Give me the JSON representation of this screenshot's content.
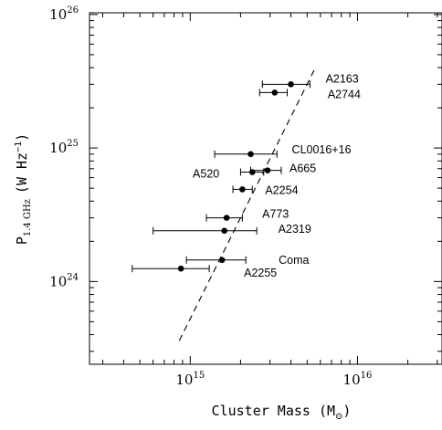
{
  "chart_data": {
    "type": "scatter",
    "xlabel": "Cluster Mass (M",
    "xlabel_sub": "⊙",
    "xlabel_close": ")",
    "ylabel_main": "P",
    "ylabel_sub": "1.4 GHz",
    "ylabel_units": "(W Hz",
    "ylabel_units_sup": "−1",
    "ylabel_close": ")",
    "x_scale": "log",
    "y_scale": "log",
    "xlim": [
      250000000000000.0,
      3.2e+16
    ],
    "ylim": [
      2.4e+23,
      1.03e+26
    ],
    "x_ticks": [
      {
        "base": "10",
        "exp": "15",
        "value": 1000000000000000.0
      },
      {
        "base": "10",
        "exp": "16",
        "value": 1e+16
      }
    ],
    "y_ticks": [
      {
        "base": "10",
        "exp": "24",
        "value": 1e+24
      },
      {
        "base": "10",
        "exp": "25",
        "value": 1e+25
      },
      {
        "base": "10",
        "exp": "26",
        "value": 1e+26
      }
    ],
    "points": [
      {
        "label": "A2163",
        "mass": 4000000000000000.0,
        "mass_lo": 2700000000000000.0,
        "mass_hi": 5200000000000000.0,
        "power": 3e+25,
        "label_pos": "right"
      },
      {
        "label": "A2744",
        "mass": 3200000000000000.0,
        "mass_lo": 2600000000000000.0,
        "mass_hi": 3800000000000000.0,
        "power": 2.6e+25,
        "label_pos": "right-below"
      },
      {
        "label": "CL0016+16",
        "mass": 2300000000000000.0,
        "mass_lo": 1400000000000000.0,
        "mass_hi": 3300000000000000.0,
        "power": 9e+24,
        "label_pos": "right"
      },
      {
        "label": "A665",
        "mass": 2900000000000000.0,
        "mass_lo": 2300000000000000.0,
        "mass_hi": 3500000000000000.0,
        "power": 6.8e+24,
        "label_pos": "right"
      },
      {
        "label": "A520",
        "mass": 2350000000000000.0,
        "mass_lo": 2000000000000000.0,
        "mass_hi": 2750000000000000.0,
        "power": 6.6e+24,
        "label_pos": "left"
      },
      {
        "label": "A2254",
        "mass": 2050000000000000.0,
        "mass_lo": 1800000000000000.0,
        "mass_hi": 2350000000000000.0,
        "power": 4.9e+24,
        "label_pos": "right-below"
      },
      {
        "label": "A773",
        "mass": 1650000000000000.0,
        "mass_lo": 1250000000000000.0,
        "mass_hi": 2050000000000000.0,
        "power": 3e+24,
        "label_pos": "right"
      },
      {
        "label": "A2319",
        "mass": 1600000000000000.0,
        "mass_lo": 600000000000000.0,
        "mass_hi": 2500000000000000.0,
        "power": 2.4e+24,
        "label_pos": "right"
      },
      {
        "label": "Coma",
        "mass": 1550000000000000.0,
        "mass_lo": 950000000000000.0,
        "mass_hi": 2150000000000000.0,
        "power": 1.45e+24,
        "label_pos": "right"
      },
      {
        "label": "A2255",
        "mass": 880000000000000.0,
        "mass_lo": 450000000000000.0,
        "mass_hi": 1300000000000000.0,
        "power": 1.25e+24,
        "label_pos": "right-below"
      }
    ],
    "fit_line": {
      "style": "dashed",
      "x": [
        860000000000000.0,
        5600000000000000.0
      ],
      "y": [
        3.6e+23,
        4e+25
      ]
    },
    "grid": false,
    "legend": false,
    "colors": {
      "ink": "#000000",
      "background": "#ffffff"
    }
  }
}
